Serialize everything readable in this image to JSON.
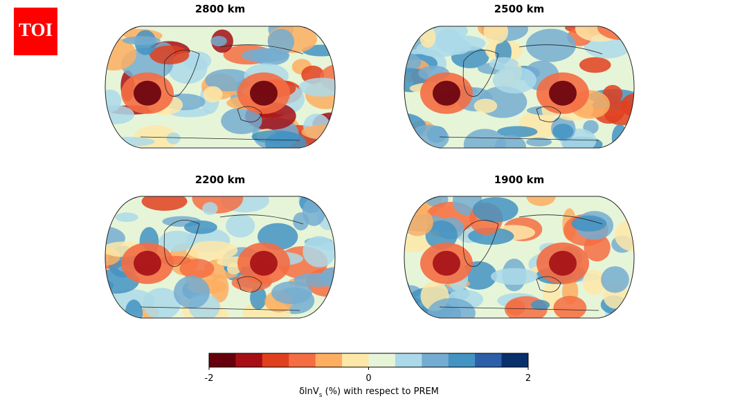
{
  "logo": "TOI",
  "panels": [
    {
      "title": "2800 km"
    },
    {
      "title": "2500 km"
    },
    {
      "title": "2200 km"
    },
    {
      "title": "1900 km"
    }
  ],
  "colorbar": {
    "lim": [
      -2,
      2
    ],
    "ticks": [
      -2,
      0,
      2
    ],
    "colors": [
      "#67000d",
      "#a50f15",
      "#e0401e",
      "#f46d43",
      "#fdae61",
      "#fee8a8",
      "#e6f5d8",
      "#abd9e9",
      "#74add1",
      "#4393c3",
      "#2c5fa8",
      "#08306b"
    ],
    "label": "δlnV",
    "label_sub": "s",
    "label_rest": " (%) with respect to PREM"
  }
}
